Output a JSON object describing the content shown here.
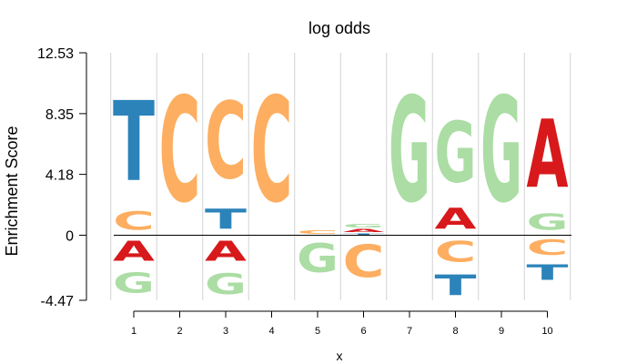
{
  "chart_data": {
    "type": "sequence-logo",
    "title": "log odds",
    "xlabel": "x",
    "ylabel": "Enrichment Score",
    "ylim": [
      -4.47,
      12.53
    ],
    "yticks": [
      "12.53",
      "8.35",
      "4.18",
      "0",
      "-4.47"
    ],
    "x": [
      1,
      2,
      3,
      4,
      5,
      6,
      7,
      8,
      9,
      10
    ],
    "colors": {
      "A": "#d7191c",
      "C": "#fdae61",
      "G": "#abdda4",
      "T": "#2b83ba"
    },
    "positions": [
      {
        "x": 1,
        "positive": [
          {
            "letter": "C",
            "height": 2.0
          },
          {
            "letter": "T",
            "height": 8.8
          }
        ],
        "negative": [
          {
            "letter": "A",
            "height": 2.2
          },
          {
            "letter": "G",
            "height": 2.2
          }
        ]
      },
      {
        "x": 2,
        "positive": [
          {
            "letter": "C",
            "height": 11.6
          }
        ],
        "negative": []
      },
      {
        "x": 3,
        "positive": [
          {
            "letter": "T",
            "height": 2.2
          },
          {
            "letter": "C",
            "height": 8.5
          }
        ],
        "negative": [
          {
            "letter": "A",
            "height": 2.2
          },
          {
            "letter": "G",
            "height": 2.3
          }
        ]
      },
      {
        "x": 4,
        "positive": [
          {
            "letter": "C",
            "height": 11.6
          }
        ],
        "negative": []
      },
      {
        "x": 5,
        "positive": [
          {
            "letter": "C",
            "height": 0.4
          }
        ],
        "negative": [
          {
            "letter": "G",
            "height": 3.2
          }
        ]
      },
      {
        "x": 6,
        "positive": [
          {
            "letter": "T",
            "height": 0.15
          },
          {
            "letter": "A",
            "height": 0.3
          },
          {
            "letter": "G",
            "height": 0.4
          }
        ],
        "negative": [
          {
            "letter": "C",
            "height": 3.6
          }
        ]
      },
      {
        "x": 7,
        "positive": [
          {
            "letter": "G",
            "height": 11.6
          }
        ],
        "negative": []
      },
      {
        "x": 8,
        "positive": [
          {
            "letter": "A",
            "height": 2.3
          },
          {
            "letter": "G",
            "height": 6.7
          }
        ],
        "negative": [
          {
            "letter": "C",
            "height": 2.3
          },
          {
            "letter": "T",
            "height": 2.3
          }
        ]
      },
      {
        "x": 9,
        "positive": [
          {
            "letter": "G",
            "height": 11.6
          }
        ],
        "negative": []
      },
      {
        "x": 10,
        "positive": [
          {
            "letter": "G",
            "height": 1.8
          },
          {
            "letter": "A",
            "height": 7.5
          }
        ],
        "negative": [
          {
            "letter": "C",
            "height": 1.7
          },
          {
            "letter": "T",
            "height": 1.7
          }
        ]
      }
    ]
  }
}
